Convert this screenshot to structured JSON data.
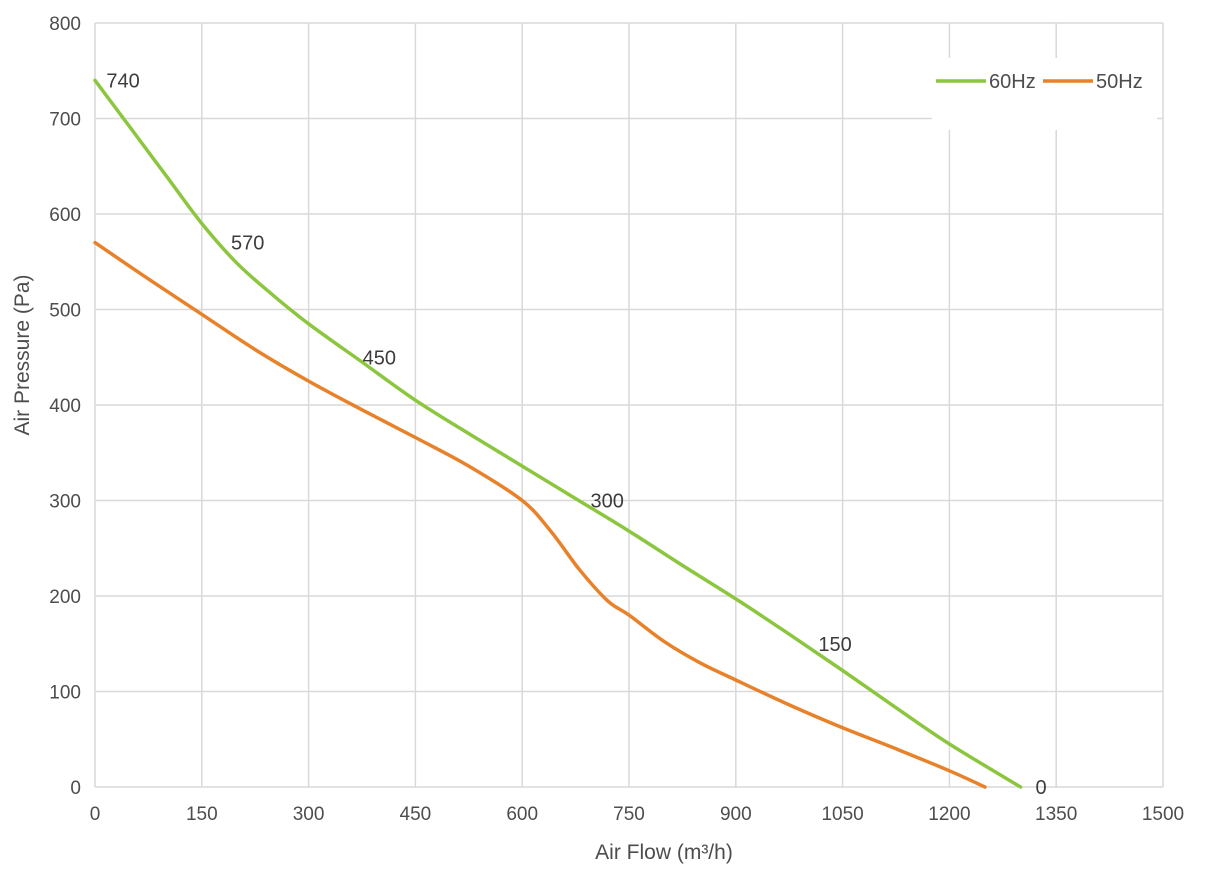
{
  "chart_data": {
    "type": "line",
    "title": "",
    "xlabel": "Air Flow  (m³/h)",
    "ylabel": "Air Pressure  (Pa)",
    "xlim": [
      0,
      1500
    ],
    "ylim": [
      0,
      800
    ],
    "xticks": [
      0,
      150,
      300,
      450,
      600,
      750,
      900,
      1050,
      1200,
      1350,
      1500
    ],
    "yticks": [
      0,
      100,
      200,
      300,
      400,
      500,
      600,
      700,
      800
    ],
    "grid": true,
    "legend_position": "top-right",
    "series": [
      {
        "name": "60Hz",
        "color": "#8cc63f",
        "points": [
          [
            0,
            740
          ],
          [
            50,
            690
          ],
          [
            100,
            640
          ],
          [
            150,
            590
          ],
          [
            200,
            548
          ],
          [
            250,
            515
          ],
          [
            300,
            485
          ],
          [
            375,
            445
          ],
          [
            450,
            405
          ],
          [
            525,
            370
          ],
          [
            600,
            336
          ],
          [
            675,
            302
          ],
          [
            750,
            268
          ],
          [
            825,
            232
          ],
          [
            900,
            197
          ],
          [
            975,
            160
          ],
          [
            1050,
            122
          ],
          [
            1125,
            83
          ],
          [
            1200,
            45
          ],
          [
            1300,
            0
          ]
        ]
      },
      {
        "name": "50Hz",
        "color": "#e8822a",
        "points": [
          [
            0,
            570
          ],
          [
            75,
            532
          ],
          [
            150,
            495
          ],
          [
            225,
            458
          ],
          [
            300,
            425
          ],
          [
            375,
            395
          ],
          [
            450,
            366
          ],
          [
            525,
            336
          ],
          [
            600,
            300
          ],
          [
            640,
            268
          ],
          [
            680,
            228
          ],
          [
            720,
            195
          ],
          [
            750,
            180
          ],
          [
            800,
            152
          ],
          [
            850,
            130
          ],
          [
            900,
            112
          ],
          [
            975,
            86
          ],
          [
            1050,
            62
          ],
          [
            1125,
            40
          ],
          [
            1200,
            17
          ],
          [
            1250,
            0
          ]
        ]
      }
    ],
    "annotations": [
      {
        "text": "740",
        "x": 30,
        "y": 740
      },
      {
        "text": "570",
        "x": 205,
        "y": 570
      },
      {
        "text": "450",
        "x": 390,
        "y": 450
      },
      {
        "text": "300",
        "x": 710,
        "y": 300
      },
      {
        "text": "150",
        "x": 1030,
        "y": 150
      },
      {
        "text": "0",
        "x": 1335,
        "y": 0
      }
    ]
  }
}
